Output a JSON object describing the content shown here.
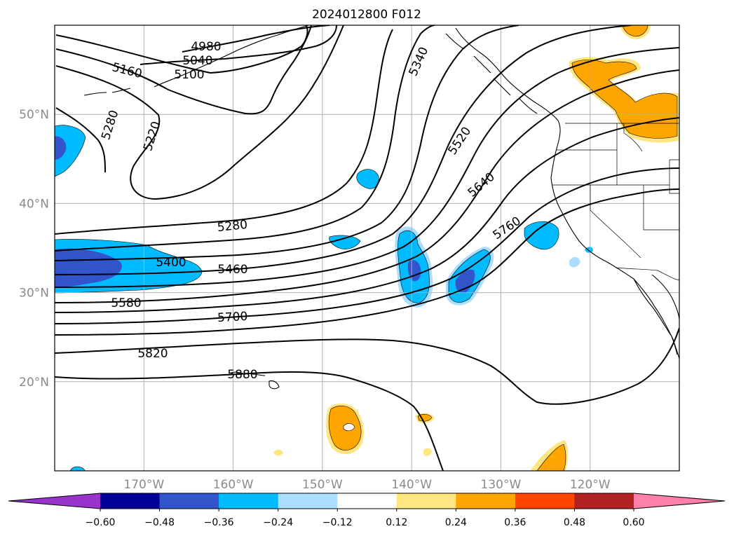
{
  "title": "2024012800 F012",
  "map": {
    "lon_range": [
      -180,
      -110
    ],
    "lat_range": [
      10,
      60
    ],
    "grid": true,
    "lat_ticks": [
      {
        "lat": 50,
        "label": "50°N"
      },
      {
        "lat": 40,
        "label": "40°N"
      },
      {
        "lat": 30,
        "label": "30°N"
      },
      {
        "lat": 20,
        "label": "20°N"
      }
    ],
    "lon_ticks": [
      {
        "lon": -170,
        "label": "170°W"
      },
      {
        "lon": -160,
        "label": "160°W"
      },
      {
        "lon": -150,
        "label": "150°W"
      },
      {
        "lon": -140,
        "label": "140°W"
      },
      {
        "lon": -130,
        "label": "130°W"
      },
      {
        "lon": -120,
        "label": "120°W"
      }
    ]
  },
  "contours": {
    "line_color": "#000000",
    "labels": [
      "4980",
      "5040",
      "5100",
      "5160",
      "5220",
      "5280",
      "5280",
      "5340",
      "5400",
      "5460",
      "5520",
      "5580",
      "5640",
      "5700",
      "5760",
      "5820",
      "5880"
    ]
  },
  "colorbar": {
    "colors": [
      "#9933cc",
      "#000099",
      "#3355cc",
      "#00bbff",
      "#aaddff",
      "#ffffff",
      "#ffe680",
      "#ffa500",
      "#ff4500",
      "#b22222",
      "#ff80a8"
    ],
    "tick_labels": [
      "−0.60",
      "−0.48",
      "−0.36",
      "−0.24",
      "−0.12",
      "0.12",
      "0.24",
      "0.36",
      "0.48",
      "0.60"
    ],
    "extend": "both"
  }
}
